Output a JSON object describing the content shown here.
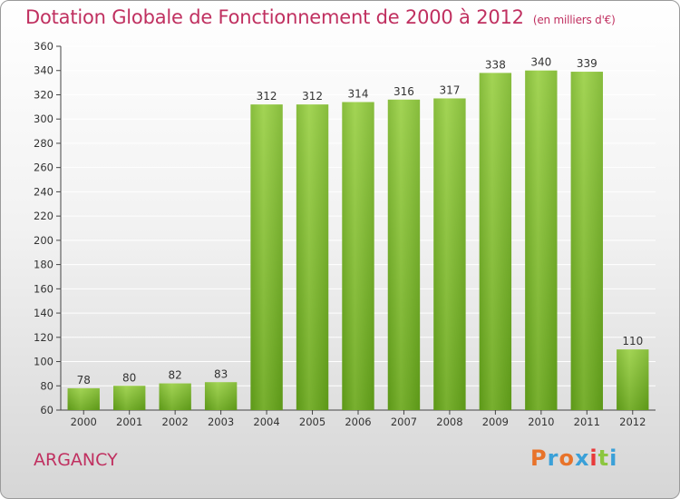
{
  "header": {
    "title": "Dotation Globale de Fonctionnement de 2000 à 2012",
    "unit": "(en milliers d'€)"
  },
  "footer": {
    "commune": "ARGANCY",
    "logo_letters": [
      "P",
      "r",
      "o",
      "x",
      "i",
      "t",
      "i"
    ],
    "logo_colors": [
      "#e8732a",
      "#3aa0d8",
      "#e8732a",
      "#3aa0d8",
      "#e83a3a",
      "#8cc63f",
      "#3aa0d8"
    ]
  },
  "colors": {
    "title": "#c03060",
    "bar_light": "#9ccf4e",
    "bar_dark": "#5f9a1a",
    "grid": "#ffffff"
  },
  "chart_data": {
    "type": "bar",
    "title": "Dotation Globale de Fonctionnement de 2000 à 2012",
    "subtitle": "(en milliers d'€)",
    "categories": [
      "2000",
      "2001",
      "2002",
      "2003",
      "2004",
      "2005",
      "2006",
      "2007",
      "2008",
      "2009",
      "2010",
      "2011",
      "2012"
    ],
    "values": [
      78,
      80,
      82,
      83,
      312,
      312,
      314,
      316,
      317,
      338,
      340,
      339,
      110
    ],
    "ylim": [
      60,
      360
    ],
    "yticks": [
      60,
      80,
      100,
      120,
      140,
      160,
      180,
      200,
      220,
      240,
      260,
      280,
      300,
      320,
      340,
      360
    ],
    "grid": true,
    "xlabel": "",
    "ylabel": ""
  }
}
